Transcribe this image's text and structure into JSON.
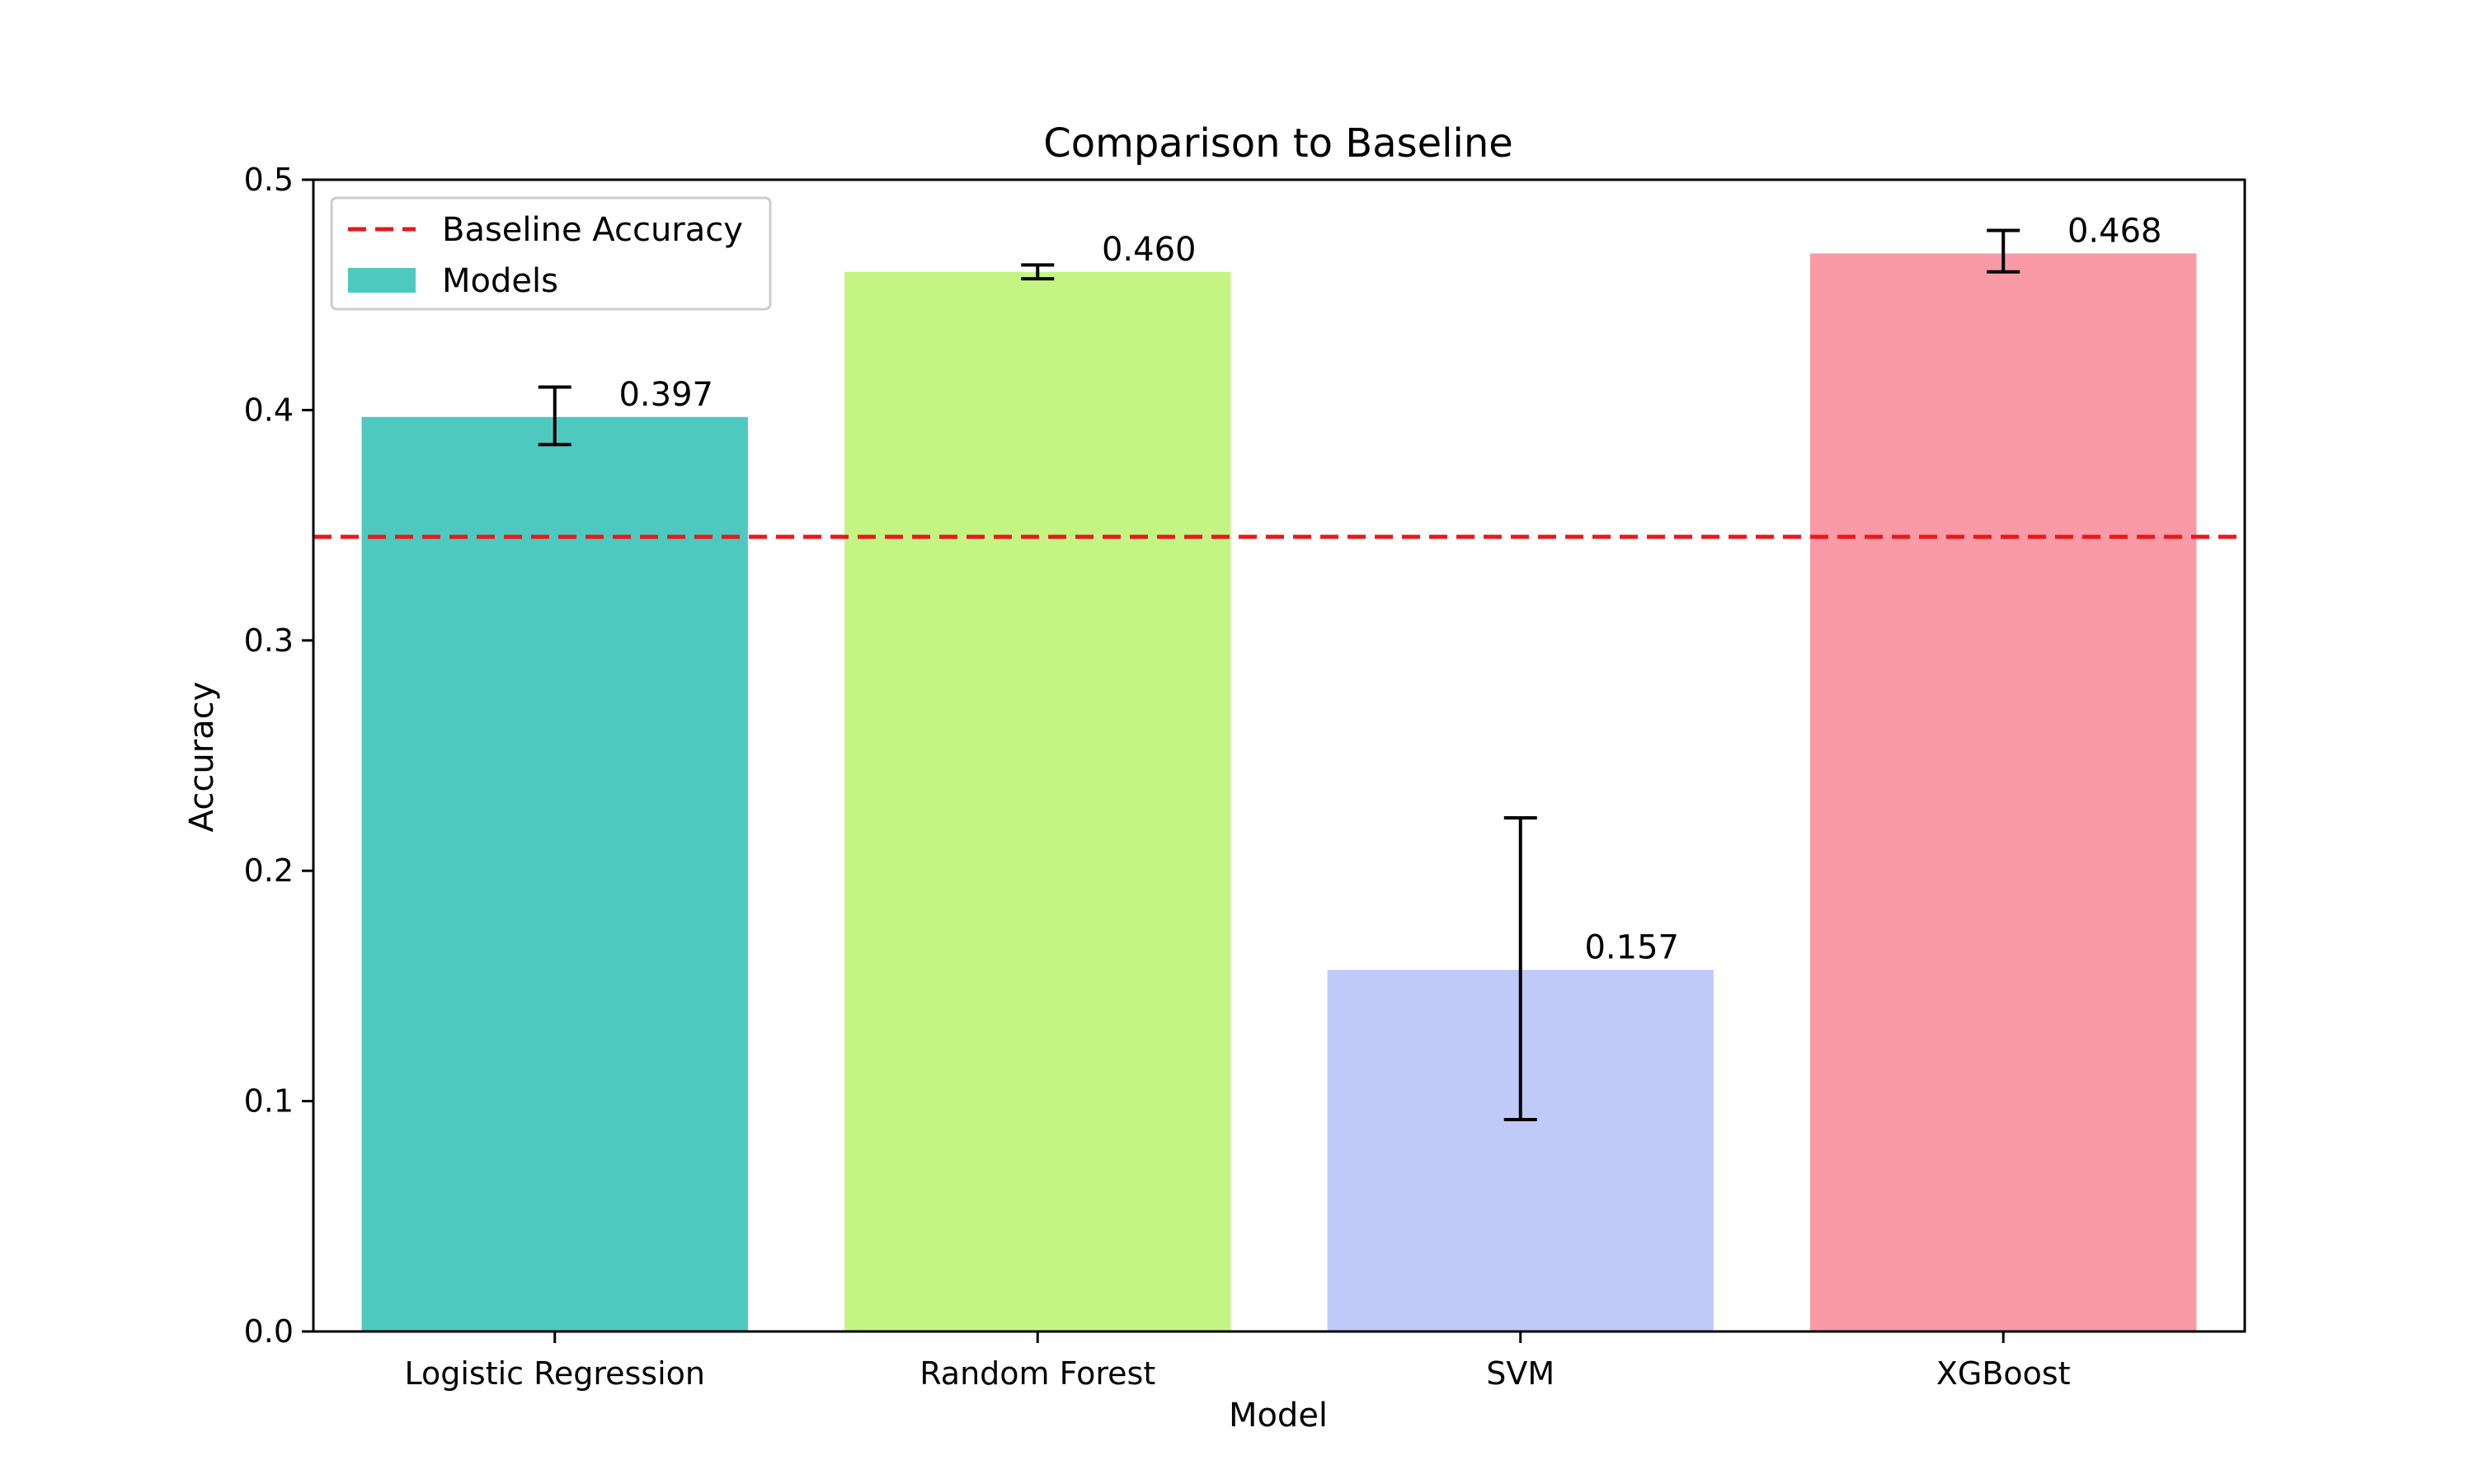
{
  "chart_data": {
    "type": "bar",
    "title": "Comparison to Baseline",
    "xlabel": "Model",
    "ylabel": "Accuracy",
    "categories": [
      "Logistic Regression",
      "Random Forest",
      "SVM",
      "XGBoost"
    ],
    "values": [
      0.397,
      0.46,
      0.157,
      0.468
    ],
    "value_labels": [
      "0.397",
      "0.460",
      "0.157",
      "0.468"
    ],
    "error_bars": [
      {
        "low": 0.385,
        "high": 0.41
      },
      {
        "low": 0.457,
        "high": 0.463
      },
      {
        "low": 0.092,
        "high": 0.223
      },
      {
        "low": 0.46,
        "high": 0.478
      }
    ],
    "colors": [
      "#4ec9c0",
      "#c4f582",
      "#c0caf9",
      "#f99aa6"
    ],
    "baseline": {
      "value": 0.345,
      "label": "Baseline Accuracy",
      "color": "#e8191b",
      "style": "dashed"
    },
    "ylim": [
      0,
      0.5
    ],
    "yticks": [
      0.0,
      0.1,
      0.2,
      0.3,
      0.4,
      0.5
    ],
    "ytick_labels": [
      "0.0",
      "0.1",
      "0.2",
      "0.3",
      "0.4",
      "0.5"
    ],
    "legend": {
      "placement": "top-left",
      "entries": [
        {
          "label": "Baseline Accuracy",
          "kind": "dashed-line",
          "color": "#e8191b"
        },
        {
          "label": "Models",
          "kind": "patch",
          "color": "#4ec9c0"
        }
      ]
    },
    "grid": false
  }
}
